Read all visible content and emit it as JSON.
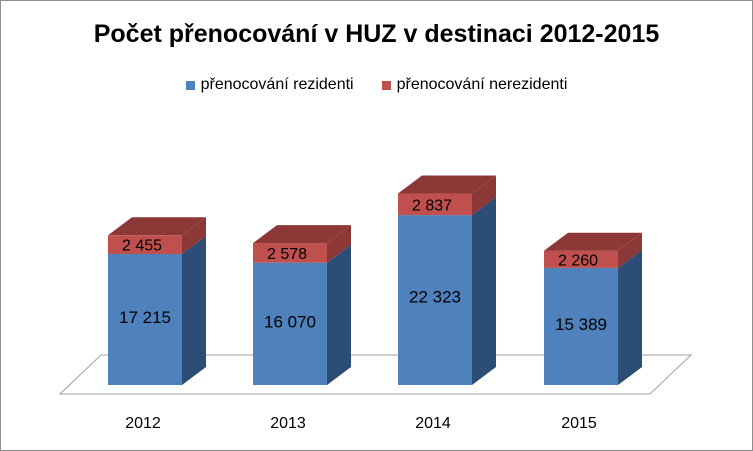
{
  "chart_data": {
    "type": "bar",
    "stacked": true,
    "three_d": true,
    "title": "Počet přenocování v HUZ v destinaci 2012-2015",
    "categories": [
      "2012",
      "2013",
      "2014",
      "2015"
    ],
    "series": [
      {
        "name": "přenocování rezidenti",
        "values": [
          17215,
          16070,
          22323,
          15389
        ],
        "labels": [
          "17 215",
          "16 070",
          "22 323",
          "15 389"
        ]
      },
      {
        "name": "přenocování nerezidenti",
        "values": [
          2455,
          2578,
          2837,
          2260
        ],
        "labels": [
          "2 455",
          "2 578",
          "2 837",
          "2 260"
        ]
      }
    ],
    "legend_position": "top",
    "grid": false
  },
  "colors": {
    "rezidenti_front": "#4f81bd",
    "rezidenti_side": "#2c4d75",
    "rezidenti_top": "#4f81bd",
    "nerezidenti_front": "#c0504d",
    "nerezidenti_side": "#8c3836",
    "nerezidenti_top": "#8c3836",
    "floor": "#ffffff",
    "floor_stroke": "#a0a0a0"
  }
}
